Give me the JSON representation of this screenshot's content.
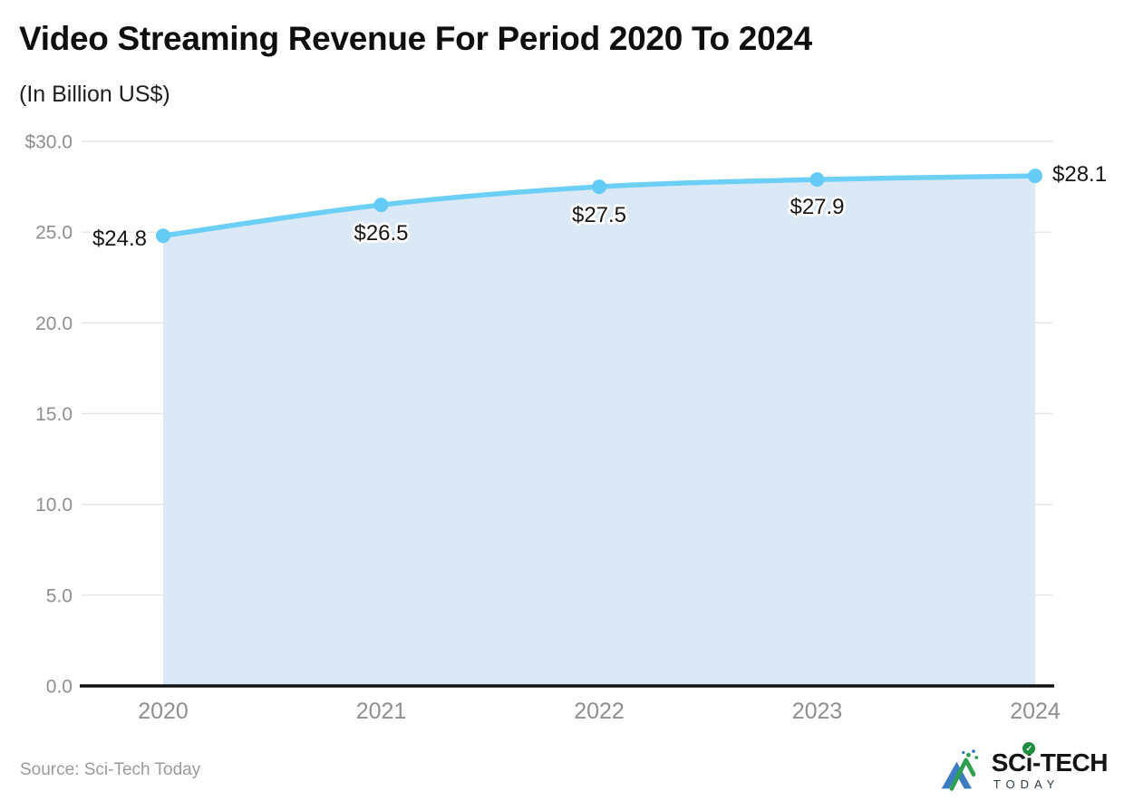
{
  "header": {
    "title": "Video Streaming Revenue For Period 2020 To 2024",
    "subtitle": "(In Billion US$)"
  },
  "chart_data": {
    "type": "area",
    "title": "Video Streaming Revenue For Period 2020 To 2024",
    "subtitle": "(In Billion US$)",
    "categories": [
      "2020",
      "2021",
      "2022",
      "2023",
      "2024"
    ],
    "values": [
      24.8,
      26.5,
      27.5,
      27.9,
      28.1
    ],
    "point_labels": [
      "$24.8",
      "$26.5",
      "$27.5",
      "$27.9",
      "$28.1"
    ],
    "xlabel": "",
    "ylabel": "",
    "ylim": [
      0,
      30
    ],
    "ytick_values": [
      0,
      5,
      10,
      15,
      20,
      25,
      30
    ],
    "ytick_labels": [
      "0.0",
      "5.0",
      "10.0",
      "15.0",
      "20.0",
      "25.0",
      "$30.0"
    ],
    "grid": true,
    "legend": false,
    "colors": {
      "line": "#6ccff5",
      "marker": "#64cbf4",
      "area_fill": "#dae9f5",
      "gridline": "#e4e4e4",
      "axis_line": "#111111",
      "tick_text": "#8f8f8f",
      "point_label_text": "#161616"
    }
  },
  "footer": {
    "source": "Source: Sci-Tech Today",
    "logo": {
      "brand_sc": "SC",
      "brand_i": "i",
      "brand_tech": "-TECH",
      "brand_check": "✓",
      "brand_today": "TODAY"
    }
  }
}
